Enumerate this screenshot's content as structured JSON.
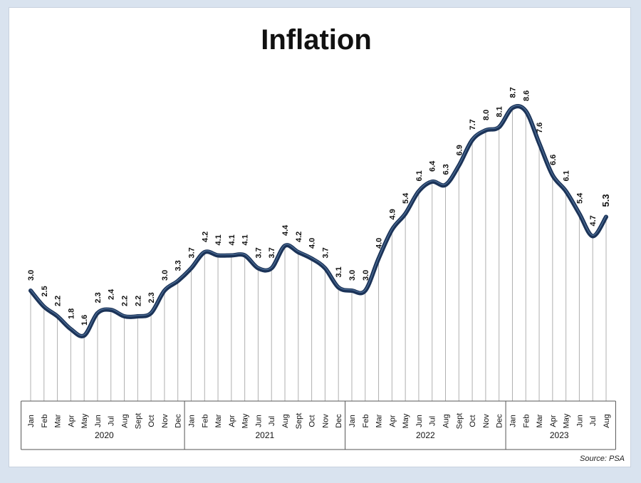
{
  "chart_data": {
    "type": "line",
    "title": "Inflation",
    "source": "Source: PSA",
    "months": [
      "Jan",
      "Feb",
      "Mar",
      "Apr",
      "May",
      "Jun",
      "Jul",
      "Aug",
      "Sept",
      "Oct",
      "Nov",
      "Dec",
      "Jan",
      "Feb",
      "Mar",
      "Apr",
      "May",
      "Jun",
      "Jul",
      "Aug",
      "Sept",
      "Oct",
      "Nov",
      "Dec",
      "Jan",
      "Feb",
      "Mar",
      "Apr",
      "May",
      "Jun",
      "Jul",
      "Aug",
      "Sept",
      "Oct",
      "Nov",
      "Dec",
      "Jan",
      "Feb",
      "Mar",
      "Apr",
      "May",
      "Jun",
      "Jul",
      "Aug"
    ],
    "years": [
      {
        "label": "2020",
        "count": 12
      },
      {
        "label": "2021",
        "count": 12
      },
      {
        "label": "2022",
        "count": 12
      },
      {
        "label": "2023",
        "count": 8
      }
    ],
    "series": [
      {
        "values": [
          3.0,
          2.5,
          2.2,
          1.8,
          1.6,
          2.3,
          2.4,
          2.2,
          2.2,
          2.3,
          3.0,
          3.3,
          3.7,
          4.2,
          4.1,
          4.1,
          4.1,
          3.7,
          3.7,
          4.4,
          4.2,
          4.0,
          3.7,
          3.1,
          3.0,
          3.0,
          4.0,
          4.9,
          5.4,
          6.1,
          6.4,
          6.3,
          6.9,
          7.7,
          8.0,
          8.1,
          8.7,
          8.6,
          7.6,
          6.6,
          6.1,
          5.4,
          4.7,
          5.3
        ],
        "labels": [
          "3.0",
          "2.5",
          "2.2",
          "1.8",
          "1.6",
          "2.3",
          "2.4",
          "2.2",
          "2.2",
          "2.3",
          "3.0",
          "3.3",
          "3.7",
          "4.2",
          "4.1",
          "4.1",
          "4.1",
          "3.7",
          "3.7",
          "4.4",
          "4.2",
          "4.0",
          "3.7",
          "3.1",
          "3.0",
          "3.0",
          "4.0",
          "4.9",
          "5.4",
          "6.1",
          "6.4",
          "6.3",
          "6.9",
          "7.7",
          "8.0",
          "8.1",
          "8.7",
          "8.6",
          "7.6",
          "6.6",
          "6.1",
          "5.4",
          "4.7",
          "5.3"
        ]
      }
    ],
    "ylim": [
      0,
      10
    ],
    "grid": false,
    "legend": "none",
    "colors": {
      "line": "#1b3358",
      "line_highlight": "#4a6a92",
      "drop_lines": "#b0b0b0",
      "axis": "#555555"
    }
  }
}
